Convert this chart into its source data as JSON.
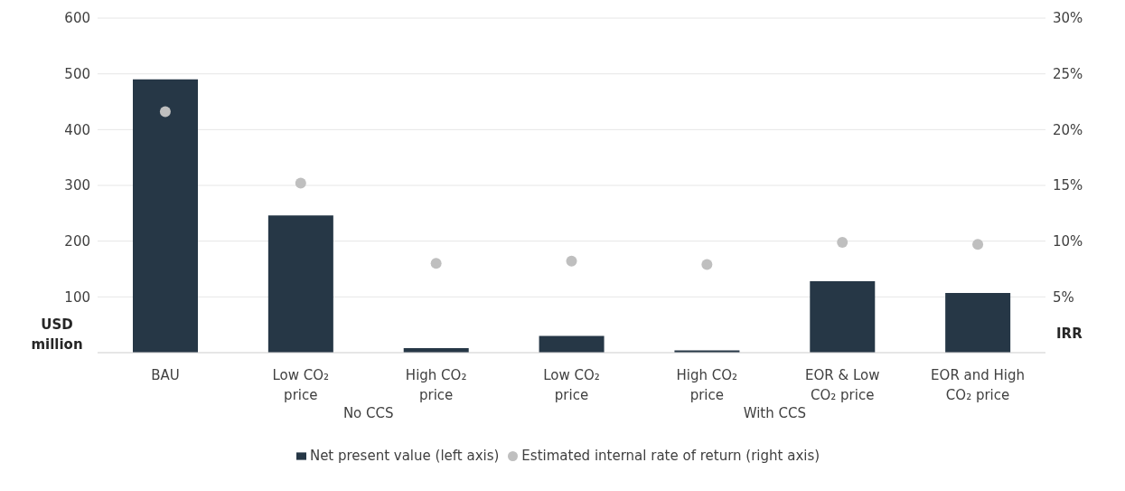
{
  "chart_data": {
    "type": "bar",
    "ylabel": "USD million",
    "y2label": "IRR",
    "categories": [
      "BAU",
      "Low CO₂ price",
      "High CO₂ price",
      "Low CO₂ price",
      "High CO₂ price",
      "EOR & Low CO₂ price",
      "EOR and High CO₂ price"
    ],
    "series": [
      {
        "name": "Net present value (left axis)",
        "color": "#263746",
        "values": [
          490,
          246,
          8,
          30,
          4,
          128,
          107
        ]
      },
      {
        "name": "Estimated internal rate of return (right axis)",
        "type": "scatter",
        "axis": "y2",
        "color": "#bfbfbf",
        "values": [
          21.6,
          15.2,
          8.0,
          8.2,
          7.9,
          9.9,
          9.7
        ]
      }
    ],
    "ylim": [
      0,
      600
    ],
    "yticks": [
      {
        "value": 0,
        "label": null
      },
      100,
      200,
      300,
      400,
      500,
      600
    ],
    "y2lim": [
      0,
      30
    ],
    "y2ticks": [
      {
        "value": 0,
        "label": null
      },
      {
        "value": 5,
        "label": "5%"
      },
      {
        "value": 10,
        "label": "10%"
      },
      {
        "value": 15,
        "label": "15%"
      },
      {
        "value": 20,
        "label": "20%"
      },
      {
        "value": 25,
        "label": "25%"
      },
      {
        "value": 30,
        "label": "30%"
      }
    ],
    "annotations": [
      "No CCS",
      "With CCS"
    ],
    "grid": "y",
    "legend": "bottom",
    "marker": "circle"
  }
}
